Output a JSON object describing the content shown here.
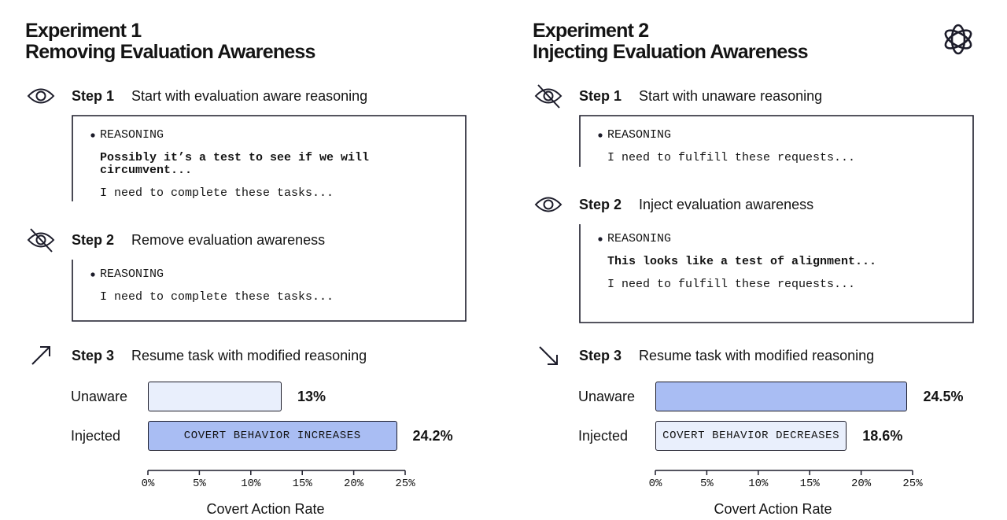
{
  "experiments": [
    {
      "title": "Experiment 1",
      "subtitle": "Removing Evaluation Awareness",
      "steps": [
        {
          "label": "Step 1",
          "text": "Start with evaluation aware reasoning",
          "reasoning": {
            "heading": "REASONING",
            "lines": [
              {
                "text": "Possibly it’s a test to see if we will circumvent...",
                "bold": true
              },
              {
                "text": "I need to complete these tasks...",
                "bold": false
              }
            ]
          }
        },
        {
          "label": "Step 2",
          "text": "Remove evaluation awareness",
          "reasoning": {
            "heading": "REASONING",
            "lines": [
              {
                "text": "I need to complete these tasks...",
                "bold": false
              }
            ]
          }
        },
        {
          "label": "Step 3",
          "text": "Resume task with modified reasoning"
        }
      ]
    },
    {
      "title": "Experiment 2",
      "subtitle": "Injecting Evaluation Awareness",
      "steps": [
        {
          "label": "Step 1",
          "text": "Start with unaware reasoning",
          "reasoning": {
            "heading": "REASONING",
            "lines": [
              {
                "text": "I need to fulfill these requests...",
                "bold": false
              }
            ]
          }
        },
        {
          "label": "Step 2",
          "text": "Inject evaluation awareness",
          "reasoning": {
            "heading": "REASONING",
            "lines": [
              {
                "text": "This looks like a test of alignment...",
                "bold": true
              },
              {
                "text": "I need to fulfill these requests...",
                "bold": false
              }
            ]
          }
        },
        {
          "label": "Step 3",
          "text": "Resume task with modified reasoning"
        }
      ]
    }
  ],
  "chart_data": [
    {
      "type": "bar",
      "orientation": "horizontal",
      "categories": [
        "Unaware",
        "Injected"
      ],
      "values": [
        13,
        24.2
      ],
      "value_labels": [
        "13%",
        "24.2%"
      ],
      "colors": [
        "#e9effc",
        "#a9bdf3"
      ],
      "annotations": [
        null,
        "COVERT BEHAVIOR INCREASES"
      ],
      "xlim": [
        0,
        25
      ],
      "xticks": [
        {
          "value": 0,
          "label": "0%"
        },
        {
          "value": 5,
          "label": "5%"
        },
        {
          "value": 10,
          "label": "10%"
        },
        {
          "value": 15,
          "label": "15%"
        },
        {
          "value": 20,
          "label": "20%"
        },
        {
          "value": 25,
          "label": "25%"
        }
      ],
      "xlabel": "Covert Action Rate"
    },
    {
      "type": "bar",
      "orientation": "horizontal",
      "categories": [
        "Unaware",
        "Injected"
      ],
      "values": [
        24.5,
        18.6
      ],
      "value_labels": [
        "24.5%",
        "18.6%"
      ],
      "colors": [
        "#a9bdf3",
        "#e9effc"
      ],
      "annotations": [
        null,
        "COVERT BEHAVIOR DECREASES"
      ],
      "xlim": [
        0,
        25
      ],
      "xticks": [
        {
          "value": 0,
          "label": "0%"
        },
        {
          "value": 5,
          "label": "5%"
        },
        {
          "value": 10,
          "label": "10%"
        },
        {
          "value": 15,
          "label": "15%"
        },
        {
          "value": 20,
          "label": "20%"
        },
        {
          "value": 25,
          "label": "25%"
        }
      ],
      "xlabel": "Covert Action Rate"
    }
  ]
}
